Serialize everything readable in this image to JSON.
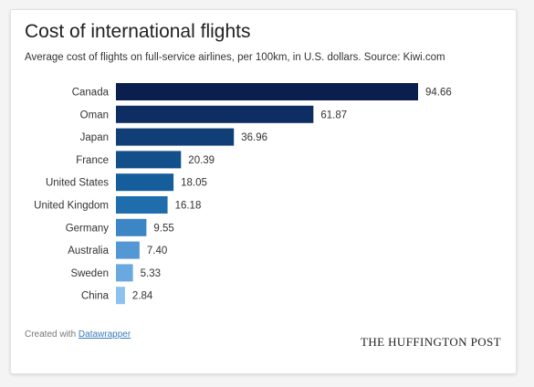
{
  "header": {
    "title": "Cost of international flights",
    "subtitle": "Average cost of flights on full-service airlines, per 100km, in U.S. dollars. Source: Kiwi.com"
  },
  "footer": {
    "created_with": "Created with",
    "link_label": "Datawrapper",
    "brand": "THE HUFFINGTON POST"
  },
  "chart_data": {
    "type": "bar",
    "orientation": "horizontal",
    "title": "Cost of international flights",
    "subtitle": "Average cost of flights on full-service airlines, per 100km, in U.S. dollars. Source: Kiwi.com",
    "categories": [
      "Canada",
      "Oman",
      "Japan",
      "France",
      "United States",
      "United Kingdom",
      "Germany",
      "Australia",
      "Sweden",
      "China"
    ],
    "values": [
      94.66,
      61.87,
      36.96,
      20.39,
      18.05,
      16.18,
      9.55,
      7.4,
      5.33,
      2.84
    ],
    "value_labels": [
      "94.66",
      "61.87",
      "36.96",
      "20.39",
      "18.05",
      "16.18",
      "9.55",
      "7.40",
      "5.33",
      "2.84"
    ],
    "colors": [
      "#0b1f4e",
      "#0e2e63",
      "#103f78",
      "#124f8b",
      "#165d9c",
      "#1f6dad",
      "#3d86c6",
      "#5397d4",
      "#6aa9e0",
      "#8dc2ee"
    ],
    "xlim": [
      0,
      94.66
    ],
    "grid": false,
    "legend": "none"
  }
}
